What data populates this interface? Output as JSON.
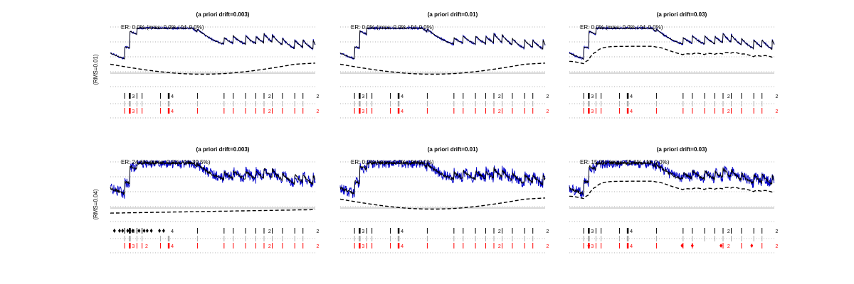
{
  "chart_data": {
    "type": "line",
    "row_labels": [
      "(RMS=0.01)",
      "(RMS=0.04)"
    ],
    "colors": {
      "signal": "#0000cc",
      "truth": "#000000",
      "estimate": "#000000",
      "baseline": "#999999",
      "grid": "#999999",
      "detected": "#000000",
      "mid": "#aaaaaa",
      "truth_events": "#ff0000"
    },
    "panels": [
      {
        "row": 0,
        "col": 0,
        "title": "(a priori drift=0.003)",
        "annotation": "ER: 0.0% (miss: 0.0% / fd: 0.0%)",
        "noise": 0.01,
        "drift": 0.003,
        "drift_style": "slow",
        "event_style": "clean"
      },
      {
        "row": 0,
        "col": 1,
        "title": "(a priori drift=0.01)",
        "annotation": "ER: 0.0% (miss: 0.0% / fd: 0.0%)",
        "noise": 0.01,
        "drift": 0.01,
        "drift_style": "slow",
        "event_style": "clean"
      },
      {
        "row": 0,
        "col": 2,
        "title": "(a priori drift=0.03)",
        "annotation": "ER: 0.0% (miss: 0.0% / fd: 0.0%)",
        "noise": 0.01,
        "drift": 0.03,
        "drift_style": "follow",
        "event_style": "clean"
      },
      {
        "row": 1,
        "col": 0,
        "title": "(a priori drift=0.003)",
        "annotation": "ER: 24.6% (miss: 0.0% / fd: 39.5%)",
        "noise": 0.04,
        "drift": 0.003,
        "drift_style": "flat",
        "event_style": "fd"
      },
      {
        "row": 1,
        "col": 1,
        "title": "(a priori drift=0.01)",
        "annotation": "ER: 0.0% (miss: 0.0% / fd: 0.0%)",
        "noise": 0.04,
        "drift": 0.01,
        "drift_style": "slow",
        "event_style": "clean"
      },
      {
        "row": 1,
        "col": 2,
        "title": "(a priori drift=0.03)",
        "annotation": "ER: 15.0% (miss: 25.1% / fd: 0.0%)",
        "noise": 0.04,
        "drift": 0.03,
        "drift_style": "follow",
        "event_style": "miss"
      }
    ],
    "event_times": [
      0.07,
      0.095,
      0.13,
      0.155,
      0.245,
      0.285,
      0.425,
      0.555,
      0.6,
      0.66,
      0.71,
      0.75,
      0.79,
      0.84,
      0.9,
      0.94
    ],
    "event_counts": {
      "0.095": "3",
      "0.285": "4",
      "0.76": "2",
      "0.995": "2"
    },
    "fd_count_labels": [
      "8",
      "2"
    ],
    "miss_count_label": "3"
  }
}
